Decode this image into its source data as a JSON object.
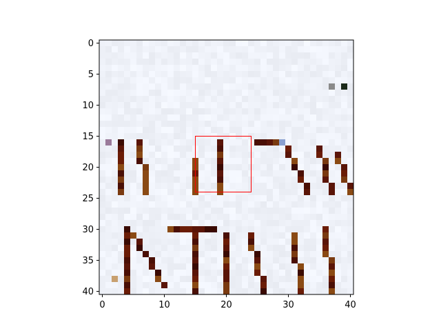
{
  "chart_data": {
    "type": "heatmap",
    "title": "",
    "xlabel": "",
    "ylabel": "",
    "xlim": [
      -0.5,
      40.5
    ],
    "ylim": [
      40.5,
      -0.5
    ],
    "grid": false,
    "x_ticks": [
      0,
      10,
      20,
      30,
      40
    ],
    "x_tick_labels": [
      "0",
      "10",
      "20",
      "30",
      "40"
    ],
    "y_ticks": [
      0,
      5,
      10,
      15,
      20,
      25,
      30,
      35,
      40
    ],
    "y_tick_labels": [
      "0",
      "5",
      "10",
      "15",
      "20",
      "25",
      "30",
      "35",
      "40"
    ],
    "image": {
      "description": "41x41 pixel crop of handwritten text, dark brown strokes on pale blue-white background",
      "rows": 41,
      "cols": 41,
      "background_color": "#eef2fc",
      "stroke_color": "#5a1508",
      "strokes": [
        {
          "id": "B-left",
          "x": [
            3,
            3
          ],
          "y": [
            16,
            24
          ]
        },
        {
          "id": "B-right",
          "x": [
            6,
            7
          ],
          "y": [
            16,
            24
          ]
        },
        {
          "id": "L-stem",
          "x": [
            15,
            15
          ],
          "y": [
            19,
            24
          ]
        },
        {
          "id": "I-stem",
          "x": [
            19,
            19
          ],
          "y": [
            16,
            24
          ]
        },
        {
          "id": "Z-top",
          "x": [
            25,
            28
          ],
          "y": [
            16,
            16
          ]
        },
        {
          "id": "Z-diag",
          "x": [
            29,
            33
          ],
          "y": [
            16,
            24
          ]
        },
        {
          "id": "A-left",
          "x": [
            35,
            37
          ],
          "y": [
            17,
            24
          ]
        },
        {
          "id": "A-right",
          "x": [
            38,
            40
          ],
          "y": [
            18,
            24
          ]
        },
        {
          "id": "N-left",
          "x": [
            4,
            4
          ],
          "y": [
            30,
            40
          ]
        },
        {
          "id": "N-diag",
          "x": [
            5,
            10
          ],
          "y": [
            31,
            39
          ]
        },
        {
          "id": "T-top",
          "x": [
            11,
            18
          ],
          "y": [
            30,
            30
          ]
        },
        {
          "id": "T-stem",
          "x": [
            15,
            15
          ],
          "y": [
            30,
            40
          ]
        },
        {
          "id": "R-stem",
          "x": [
            20,
            20
          ],
          "y": [
            31,
            40
          ]
        },
        {
          "id": "R-leg",
          "x": [
            24,
            26
          ],
          "y": [
            31,
            40
          ]
        },
        {
          "id": "A2-left",
          "x": [
            31,
            32
          ],
          "y": [
            31,
            40
          ]
        },
        {
          "id": "A2-right",
          "x": [
            36,
            37
          ],
          "y": [
            30,
            40
          ]
        }
      ],
      "specks": [
        {
          "x": 37,
          "y": 7,
          "color": "#8a8a8a"
        },
        {
          "x": 39,
          "y": 7,
          "color": "#1b2a1a"
        },
        {
          "x": 1,
          "y": 16,
          "color": "#9a7a9a"
        },
        {
          "x": 2,
          "y": 38,
          "color": "#c8a070"
        },
        {
          "x": 29,
          "y": 16,
          "color": "#8aa0d0"
        }
      ]
    },
    "annotation_rect": {
      "x0": 15,
      "y0": 15,
      "x1": 24,
      "y1": 24,
      "color": "#ff0000"
    }
  }
}
